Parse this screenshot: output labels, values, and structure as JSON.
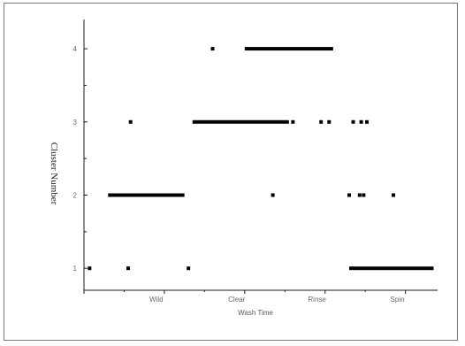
{
  "chart_data": {
    "type": "scatter",
    "title": "",
    "xlabel": "Wash Time",
    "ylabel": "Cluster Number",
    "x_categories": [
      "Wild",
      "Clear",
      "Rinse",
      "Spin"
    ],
    "y_ticks": [
      "1",
      "2",
      "3",
      "4"
    ],
    "y_positions": [
      1,
      2,
      3,
      4
    ],
    "x_categories_range": [
      0,
      4.4
    ],
    "ylim": [
      0.7,
      4.4
    ],
    "grid": false,
    "legend": "none",
    "colors": {
      "marks": "#000000",
      "axis": "#1a1a1a",
      "frame": "#7a7a7a"
    },
    "points": [
      {
        "x": 0.07,
        "y": 1
      },
      {
        "x": 0.55,
        "y": 1
      },
      {
        "x": 1.3,
        "y": 1
      },
      {
        "x": 0.58,
        "y": 3
      },
      {
        "x": 1.6,
        "y": 4
      },
      {
        "x": 2.35,
        "y": 2
      },
      {
        "x": 2.6,
        "y": 3
      },
      {
        "x": 2.95,
        "y": 3
      },
      {
        "x": 3.05,
        "y": 3
      },
      {
        "x": 3.3,
        "y": 2
      },
      {
        "x": 3.35,
        "y": 3
      },
      {
        "x": 3.43,
        "y": 2
      },
      {
        "x": 3.45,
        "y": 3
      },
      {
        "x": 3.48,
        "y": 2
      },
      {
        "x": 3.52,
        "y": 3
      },
      {
        "x": 3.85,
        "y": 2
      }
    ],
    "segments": [
      {
        "x1": 0.3,
        "x2": 1.25,
        "y": 2
      },
      {
        "x1": 1.35,
        "x2": 2.55,
        "y": 3
      },
      {
        "x1": 2.0,
        "x2": 3.1,
        "y": 4
      },
      {
        "x1": 3.3,
        "x2": 4.35,
        "y": 1
      }
    ]
  }
}
